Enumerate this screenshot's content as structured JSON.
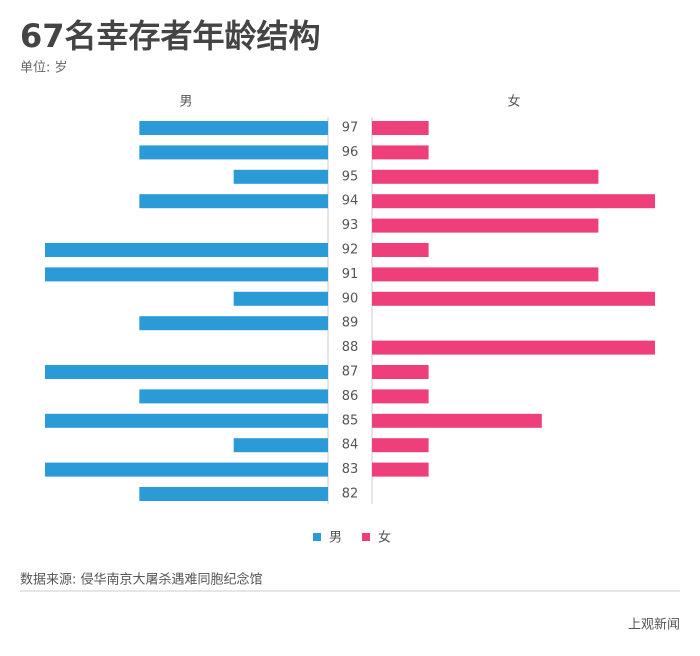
{
  "chart_data": {
    "type": "butterfly-bar",
    "title": "67名幸存者年龄结构",
    "subtitle": "单位: 岁",
    "categories": [
      "97",
      "96",
      "95",
      "94",
      "93",
      "92",
      "91",
      "90",
      "89",
      "88",
      "87",
      "86",
      "85",
      "84",
      "83",
      "82"
    ],
    "series": [
      {
        "name": "男",
        "color": "#2b9bd8",
        "xlim": [
          0,
          3
        ],
        "values": [
          2,
          2,
          1,
          2,
          0,
          3,
          3,
          1,
          2,
          0,
          3,
          2,
          3,
          1,
          3,
          2
        ]
      },
      {
        "name": "女",
        "color": "#ee3f7a",
        "xlim": [
          0,
          5
        ],
        "values": [
          1,
          1,
          4,
          5,
          4,
          1,
          4,
          5,
          0,
          5,
          1,
          1,
          3,
          1,
          1,
          0
        ]
      }
    ],
    "legend": "bottom",
    "source": "数据来源: 侵华南京大屠杀遇难同胞纪念馆",
    "brand": "上观新闻"
  }
}
